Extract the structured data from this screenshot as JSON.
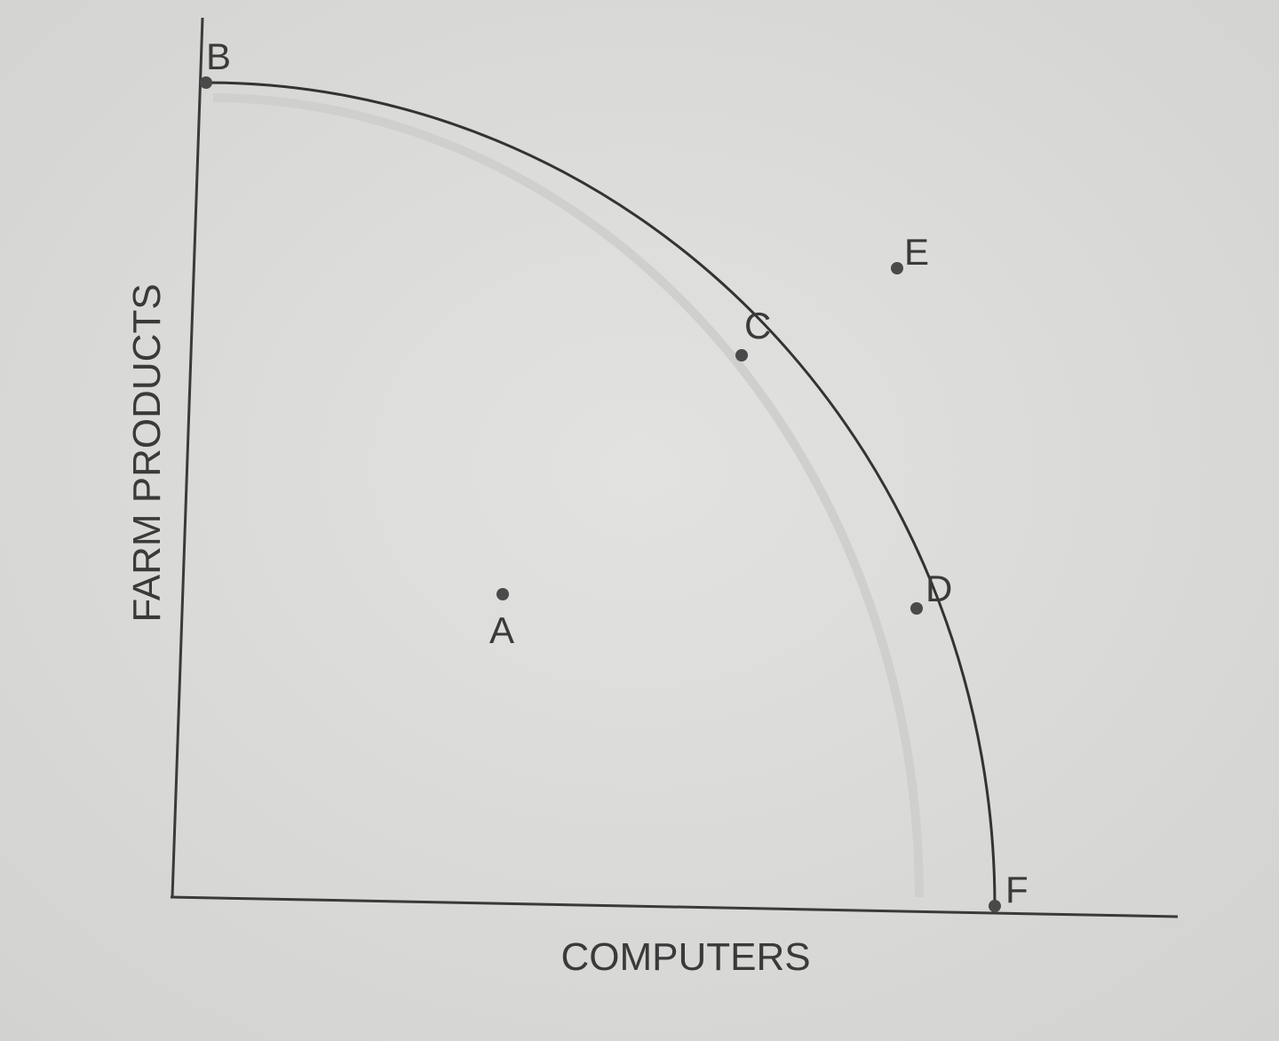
{
  "axes": {
    "x_label": "COMPUTERS",
    "y_label": "FARM PRODUCTS"
  },
  "points": [
    {
      "label": "A"
    },
    {
      "label": "B"
    },
    {
      "label": "C"
    },
    {
      "label": "D"
    },
    {
      "label": "E"
    },
    {
      "label": "F"
    }
  ]
}
